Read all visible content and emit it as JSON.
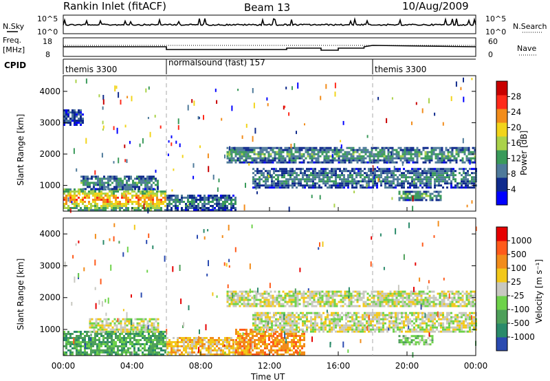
{
  "header": {
    "station": "Rankin Inlet (fitACF)",
    "beam": "Beam 13",
    "date": "10/Aug/2009"
  },
  "panels": {
    "nsky_label": "N.Sky",
    "nsky_ticks": [
      "10^5",
      "10^0"
    ],
    "nsearch_label": "N.Search",
    "nsearch_ticks": [
      "10^5",
      "10^0"
    ],
    "freq_label_1": "Freq.",
    "freq_label_2": "[MHz]",
    "freq_ticks": [
      "18",
      "8"
    ],
    "nave_label": "Nave",
    "nave_ticks": [
      "60",
      "0"
    ],
    "cpid_label": "CPID",
    "cpid_segments": [
      {
        "label": "themis 3300",
        "start_h": 0,
        "end_h": 6
      },
      {
        "label": "normalsound (fast) 157",
        "start_h": 6,
        "end_h": 18
      },
      {
        "label": "themis 3300",
        "start_h": 18,
        "end_h": 24
      }
    ]
  },
  "chart_data": [
    {
      "type": "heatmap",
      "name": "power",
      "ylabel": "Slant Range [km]",
      "yticks": [
        "4000",
        "3000",
        "2000",
        "1000"
      ],
      "ylim": [
        180,
        4500
      ],
      "xlim_h": [
        0,
        24
      ],
      "colorbar_label": "Power [dB]",
      "colorbar_ticks": [
        "28",
        "24",
        "20",
        "16",
        "12",
        "8",
        "4"
      ],
      "colors": [
        "#0000ff",
        "#0f2a8c",
        "#4e7a9a",
        "#3a9a5a",
        "#aad24a",
        "#f2d41a",
        "#f28c1a",
        "#ff2a1a",
        "#c80000"
      ],
      "regions": [
        {
          "t0": 0.0,
          "t1": 6.0,
          "r0": 180,
          "r1": 850,
          "v": 0.82
        },
        {
          "t0": 1.0,
          "t1": 5.5,
          "r0": 850,
          "r1": 1300,
          "v": 0.35
        },
        {
          "t0": 6.0,
          "t1": 10.0,
          "r0": 180,
          "r1": 700,
          "v": 0.3
        },
        {
          "t0": 9.5,
          "t1": 24.0,
          "r0": 1700,
          "r1": 2200,
          "v": 0.4
        },
        {
          "t0": 11.0,
          "t1": 24.0,
          "r0": 900,
          "r1": 1500,
          "v": 0.33
        },
        {
          "t0": 19.5,
          "t1": 22.0,
          "r0": 500,
          "r1": 800,
          "v": 0.45
        },
        {
          "t0": 0.0,
          "t1": 1.2,
          "r0": 2900,
          "r1": 3400,
          "v": 0.2
        }
      ]
    },
    {
      "type": "heatmap",
      "name": "velocity",
      "ylabel": "Slant Range [km]",
      "yticks": [
        "4000",
        "3000",
        "2000",
        "1000"
      ],
      "ylim": [
        180,
        4500
      ],
      "xlim_h": [
        0,
        24
      ],
      "xticks": [
        "00:00",
        "04:00",
        "08:00",
        "12:00",
        "16:00",
        "20:00",
        "00:00"
      ],
      "xlabel": "Time UT",
      "colorbar_label": "Velocity [m s⁻¹]",
      "colorbar_ticks": [
        "1000",
        "500",
        "100",
        "25",
        "-25",
        "-100",
        "-500",
        "-1000"
      ],
      "colors": [
        "#2a4ab0",
        "#2a8a6a",
        "#4ea05a",
        "#6ed24a",
        "#c8c8c0",
        "#f2c81a",
        "#f28c1a",
        "#ff5a1a",
        "#e60000"
      ],
      "regions": [
        {
          "t0": 0.0,
          "t1": 6.0,
          "r0": 180,
          "r1": 900,
          "v": 2
        },
        {
          "t0": 1.5,
          "t1": 5.5,
          "r0": 900,
          "r1": 1300,
          "v": 4
        },
        {
          "t0": 6.0,
          "t1": 11.0,
          "r0": 180,
          "r1": 700,
          "v": 5
        },
        {
          "t0": 9.5,
          "t1": 24.0,
          "r0": 1700,
          "r1": 2200,
          "v": 4
        },
        {
          "t0": 10.0,
          "t1": 14.0,
          "r0": 180,
          "r1": 1000,
          "v": 6
        },
        {
          "t0": 11.0,
          "t1": 24.0,
          "r0": 900,
          "r1": 1500,
          "v": 4
        },
        {
          "t0": 19.5,
          "t1": 21.5,
          "r0": 500,
          "r1": 800,
          "v": 3
        }
      ]
    }
  ]
}
